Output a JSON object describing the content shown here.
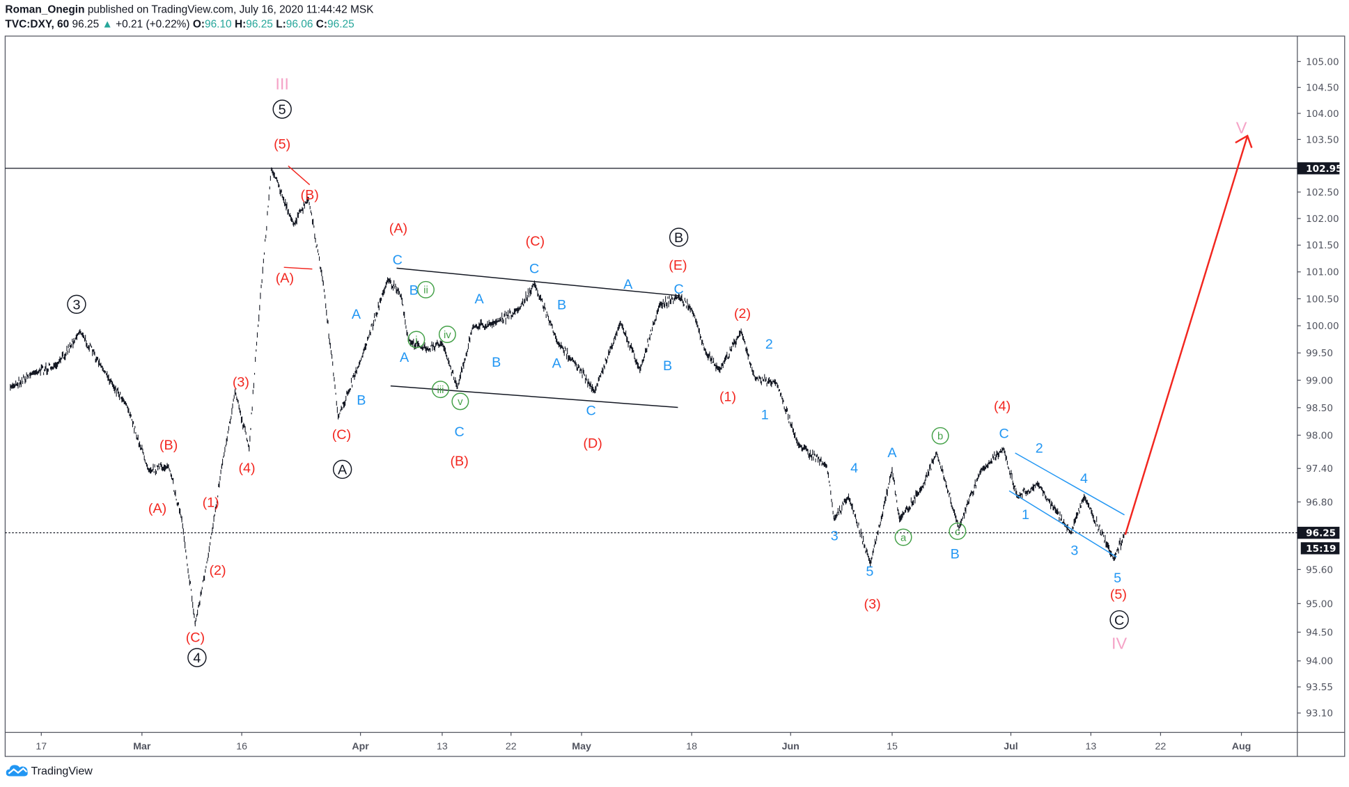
{
  "header": {
    "author": "Roman_Onegin",
    "published": "published on TradingView.com, July 16, 2020 11:44:42 MSK",
    "symbol": "TVC:DXY, 60",
    "last": "96.25",
    "change": "+0.21 (+0.22%)",
    "o_label": "O:",
    "o": "96.10",
    "h_label": "H:",
    "h": "96.25",
    "l_label": "L:",
    "l": "96.06",
    "c_label": "C:",
    "c": "96.25"
  },
  "footer": {
    "brand": "TradingView"
  },
  "colors": {
    "up": "#26a69a",
    "red": "#f2261f",
    "blue": "#2196f3",
    "green": "#43a047",
    "pink": "#f5a3c7",
    "black": "#131722",
    "channel_blue": "#2196f3"
  },
  "chart_data": {
    "type": "line",
    "symbol": "TVC:DXY",
    "interval": "60",
    "y_scale": "log",
    "ylim": [
      92.9,
      105.5
    ],
    "grid": false,
    "price_ticks": [
      "105.00",
      "104.50",
      "104.00",
      "103.50",
      "102.50",
      "102.00",
      "101.50",
      "101.00",
      "100.50",
      "100.00",
      "99.50",
      "99.00",
      "98.50",
      "98.00",
      "97.40",
      "96.80",
      "95.60",
      "95.00",
      "94.50",
      "94.00",
      "93.55",
      "93.10"
    ],
    "price_markers": {
      "level": "102.95",
      "last": "96.25",
      "countdown": "15:19"
    },
    "x_ticks": [
      {
        "label": "17",
        "date": "2020-02-17",
        "bold": false
      },
      {
        "label": "Mar",
        "date": "2020-03-01",
        "bold": true
      },
      {
        "label": "16",
        "date": "2020-03-16",
        "bold": false
      },
      {
        "label": "Apr",
        "date": "2020-04-01",
        "bold": true
      },
      {
        "label": "13",
        "date": "2020-04-13",
        "bold": false
      },
      {
        "label": "22",
        "date": "2020-04-22",
        "bold": false
      },
      {
        "label": "May",
        "date": "2020-05-01",
        "bold": true
      },
      {
        "label": "18",
        "date": "2020-05-18",
        "bold": false
      },
      {
        "label": "Jun",
        "date": "2020-06-01",
        "bold": true
      },
      {
        "label": "15",
        "date": "2020-06-15",
        "bold": false
      },
      {
        "label": "Jul",
        "date": "2020-07-01",
        "bold": true
      },
      {
        "label": "13",
        "date": "2020-07-13",
        "bold": false
      },
      {
        "label": "22",
        "date": "2020-07-22",
        "bold": false
      },
      {
        "label": "Aug",
        "date": "2020-08-01",
        "bold": true
      }
    ],
    "series": [
      [
        "2020-02-13",
        98.87
      ],
      [
        "2020-02-16",
        99.14
      ],
      [
        "2020-02-19",
        99.27
      ],
      [
        "2020-02-22",
        99.9
      ],
      [
        "2020-02-25",
        99.19
      ],
      [
        "2020-02-28",
        98.56
      ],
      [
        "2020-03-02",
        97.37
      ],
      [
        "2020-03-05",
        97.44
      ],
      [
        "2020-03-07",
        96.49
      ],
      [
        "2020-03-09",
        94.65
      ],
      [
        "2020-03-11",
        95.86
      ],
      [
        "2020-03-13",
        97.44
      ],
      [
        "2020-03-15",
        98.79
      ],
      [
        "2020-03-17",
        97.76
      ],
      [
        "2020-03-18",
        99.67
      ],
      [
        "2020-03-20",
        102.95
      ],
      [
        "2020-03-23",
        101.89
      ],
      [
        "2020-03-25",
        102.37
      ],
      [
        "2020-03-27",
        100.78
      ],
      [
        "2020-03-29",
        98.32
      ],
      [
        "2020-04-01",
        99.35
      ],
      [
        "2020-04-05",
        100.86
      ],
      [
        "2020-04-07",
        100.54
      ],
      [
        "2020-04-08",
        99.75
      ],
      [
        "2020-04-10",
        99.59
      ],
      [
        "2020-04-13",
        99.67
      ],
      [
        "2020-04-15",
        98.87
      ],
      [
        "2020-04-17",
        99.98
      ],
      [
        "2020-04-20",
        100.06
      ],
      [
        "2020-04-23",
        100.3
      ],
      [
        "2020-04-25",
        100.78
      ],
      [
        "2020-04-28",
        99.67
      ],
      [
        "2020-04-30",
        99.35
      ],
      [
        "2020-05-03",
        98.79
      ],
      [
        "2020-05-07",
        100.06
      ],
      [
        "2020-05-10",
        99.19
      ],
      [
        "2020-05-13",
        100.38
      ],
      [
        "2020-05-16",
        100.54
      ],
      [
        "2020-05-18",
        100.3
      ],
      [
        "2020-05-20",
        99.51
      ],
      [
        "2020-05-22",
        99.19
      ],
      [
        "2020-05-25",
        99.9
      ],
      [
        "2020-05-27",
        99.03
      ],
      [
        "2020-05-30",
        98.95
      ],
      [
        "2020-06-02",
        97.84
      ],
      [
        "2020-06-06",
        97.44
      ],
      [
        "2020-06-07",
        96.49
      ],
      [
        "2020-06-09",
        96.89
      ],
      [
        "2020-06-12",
        95.7
      ],
      [
        "2020-06-15",
        97.37
      ],
      [
        "2020-06-16",
        96.49
      ],
      [
        "2020-06-19",
        97.05
      ],
      [
        "2020-06-21",
        97.68
      ],
      [
        "2020-06-24",
        96.33
      ],
      [
        "2020-06-27",
        97.37
      ],
      [
        "2020-06-30",
        97.76
      ],
      [
        "2020-07-02",
        96.89
      ],
      [
        "2020-07-05",
        97.13
      ],
      [
        "2020-07-10",
        96.25
      ],
      [
        "2020-07-12",
        96.89
      ],
      [
        "2020-07-15",
        95.78
      ],
      [
        "2020-07-16",
        96.25
      ]
    ],
    "annotations": [
      {
        "text": "III",
        "color": "pink"
      },
      {
        "text": "IV",
        "color": "pink"
      },
      {
        "text": "V",
        "color": "pink"
      },
      {
        "text": "3",
        "color": "black",
        "circle": true
      },
      {
        "text": "5",
        "color": "black",
        "circle": true
      },
      {
        "text": "4",
        "color": "black",
        "circle": true
      },
      {
        "text": "A",
        "color": "black",
        "circle": true
      },
      {
        "text": "B",
        "color": "black",
        "circle": true
      },
      {
        "text": "C",
        "color": "black",
        "circle": true
      },
      {
        "text": "(5)",
        "color": "red"
      },
      {
        "text": "(B)",
        "color": "red"
      },
      {
        "text": "(A)",
        "color": "red"
      },
      {
        "text": "(A)",
        "color": "red"
      },
      {
        "text": "(C)",
        "color": "red"
      },
      {
        "text": "(E)",
        "color": "red"
      },
      {
        "text": "(2)",
        "color": "red"
      },
      {
        "text": "(1)",
        "color": "red"
      },
      {
        "text": "(C)",
        "color": "red"
      },
      {
        "text": "(B)",
        "color": "red"
      },
      {
        "text": "(D)",
        "color": "red"
      },
      {
        "text": "(3)",
        "color": "red"
      },
      {
        "text": "(4)",
        "color": "red"
      },
      {
        "text": "(1)",
        "color": "red"
      },
      {
        "text": "(2)",
        "color": "red"
      },
      {
        "text": "(B)",
        "color": "red"
      },
      {
        "text": "(A)",
        "color": "red"
      },
      {
        "text": "(C)",
        "color": "red"
      },
      {
        "text": "(3)",
        "color": "red"
      },
      {
        "text": "(4)",
        "color": "red"
      },
      {
        "text": "(5)",
        "color": "red"
      },
      {
        "text": "C",
        "color": "blue"
      },
      {
        "text": "B",
        "color": "blue"
      },
      {
        "text": "A",
        "color": "blue"
      },
      {
        "text": "B",
        "color": "blue"
      },
      {
        "text": "A",
        "color": "blue"
      },
      {
        "text": "C",
        "color": "blue"
      },
      {
        "text": "A",
        "color": "blue"
      },
      {
        "text": "B",
        "color": "blue"
      },
      {
        "text": "C",
        "color": "blue"
      },
      {
        "text": "B",
        "color": "blue"
      },
      {
        "text": "A",
        "color": "blue"
      },
      {
        "text": "C",
        "color": "blue"
      },
      {
        "text": "A",
        "color": "blue"
      },
      {
        "text": "B",
        "color": "blue"
      },
      {
        "text": "C",
        "color": "blue"
      },
      {
        "text": "2",
        "color": "blue"
      },
      {
        "text": "1",
        "color": "blue"
      },
      {
        "text": "4",
        "color": "blue"
      },
      {
        "text": "3",
        "color": "blue"
      },
      {
        "text": "5",
        "color": "blue"
      },
      {
        "text": "A",
        "color": "blue"
      },
      {
        "text": "B",
        "color": "blue"
      },
      {
        "text": "C",
        "color": "blue"
      },
      {
        "text": "2",
        "color": "blue"
      },
      {
        "text": "1",
        "color": "blue"
      },
      {
        "text": "4",
        "color": "blue"
      },
      {
        "text": "3",
        "color": "blue"
      },
      {
        "text": "5",
        "color": "blue"
      },
      {
        "text": "ii",
        "color": "green",
        "circle": true
      },
      {
        "text": "i",
        "color": "green",
        "circle": true
      },
      {
        "text": "iv",
        "color": "green",
        "circle": true
      },
      {
        "text": "iii",
        "color": "green",
        "circle": true
      },
      {
        "text": "v",
        "color": "green",
        "circle": true
      },
      {
        "text": "b",
        "color": "green",
        "circle": true
      },
      {
        "text": "a",
        "color": "green",
        "circle": true
      },
      {
        "text": "c",
        "color": "green",
        "circle": true
      }
    ]
  }
}
